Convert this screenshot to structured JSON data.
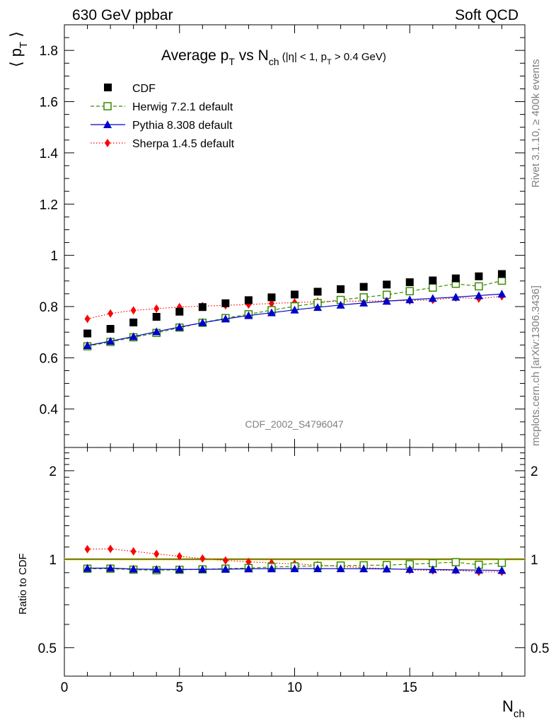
{
  "header": {
    "left": "630 GeV ppbar",
    "right": "Soft QCD"
  },
  "side": {
    "rivet": "Rivet 3.1.10, ≥ 400k events",
    "mcplots": "mcplots.cern.ch [arXiv:1306.3436]"
  },
  "chart_data": {
    "type": "scatter",
    "title": "Average pT vs Nch (|η| < 1, pT > 0.4 GeV)",
    "title_parts": {
      "main": "Average p",
      "main_sub": "T",
      "vs": " vs N",
      "vs_sub": "ch",
      "cut1": " (|η| < 1, p",
      "cut1_sub": "T",
      "cut2": " > 0.4 GeV)"
    },
    "analysis_label": "CDF_2002_S4796047",
    "ylabel": {
      "left": "⟨ p",
      "sub": "T",
      "right": " ⟩"
    },
    "ratio_ylabel": "Ratio to CDF",
    "xlabel": {
      "main": "N",
      "sub": "ch"
    },
    "xlim": [
      0,
      20
    ],
    "ylim": [
      0.25,
      1.9
    ],
    "ratio_ylim": [
      0.4,
      2.4
    ],
    "x_ticks": [
      0,
      5,
      10,
      15
    ],
    "x_tick_labels": [
      "0",
      "5",
      "10",
      "15"
    ],
    "y_ticks": [
      0.4,
      0.6,
      0.8,
      1.0,
      1.2,
      1.4,
      1.6,
      1.8
    ],
    "y_tick_labels": [
      "0.4",
      "0.6",
      "0.8",
      "1",
      "1.2",
      "1.4",
      "1.6",
      "1.8"
    ],
    "ratio_ticks": [
      0.5,
      1,
      2
    ],
    "ratio_tick_labels": [
      "0.5",
      "1",
      "2"
    ],
    "x": [
      1,
      2,
      3,
      4,
      5,
      6,
      7,
      8,
      9,
      10,
      11,
      12,
      13,
      14,
      15,
      16,
      17,
      18,
      19
    ],
    "series": [
      {
        "name": "CDF",
        "color": "#000000",
        "marker": "square-filled",
        "line": "none",
        "values": [
          0.695,
          0.713,
          0.738,
          0.76,
          0.78,
          0.798,
          0.813,
          0.825,
          0.836,
          0.847,
          0.858,
          0.868,
          0.877,
          0.886,
          0.895,
          0.902,
          0.91,
          0.918,
          0.927
        ]
      },
      {
        "name": "Herwig 7.2.1 default",
        "color": "#3a8a00",
        "marker": "square-open",
        "line": "dashed",
        "values": [
          0.645,
          0.662,
          0.68,
          0.697,
          0.718,
          0.737,
          0.755,
          0.77,
          0.786,
          0.801,
          0.814,
          0.826,
          0.836,
          0.846,
          0.86,
          0.874,
          0.889,
          0.879,
          0.901
        ]
      },
      {
        "name": "Pythia 8.308 default",
        "color": "#0000cc",
        "marker": "triangle",
        "line": "solid",
        "values": [
          0.648,
          0.665,
          0.683,
          0.702,
          0.72,
          0.737,
          0.752,
          0.765,
          0.776,
          0.787,
          0.797,
          0.806,
          0.814,
          0.821,
          0.827,
          0.832,
          0.837,
          0.843,
          0.849
        ]
      },
      {
        "name": "Sherpa 1.4.5 default",
        "color": "#ff0000",
        "marker": "diamond",
        "line": "dotted",
        "values": [
          0.752,
          0.773,
          0.785,
          0.792,
          0.798,
          0.802,
          0.805,
          0.808,
          0.812,
          0.816,
          0.819,
          0.821,
          0.821,
          0.823,
          0.823,
          0.826,
          0.835,
          0.831,
          0.84
        ]
      }
    ]
  }
}
